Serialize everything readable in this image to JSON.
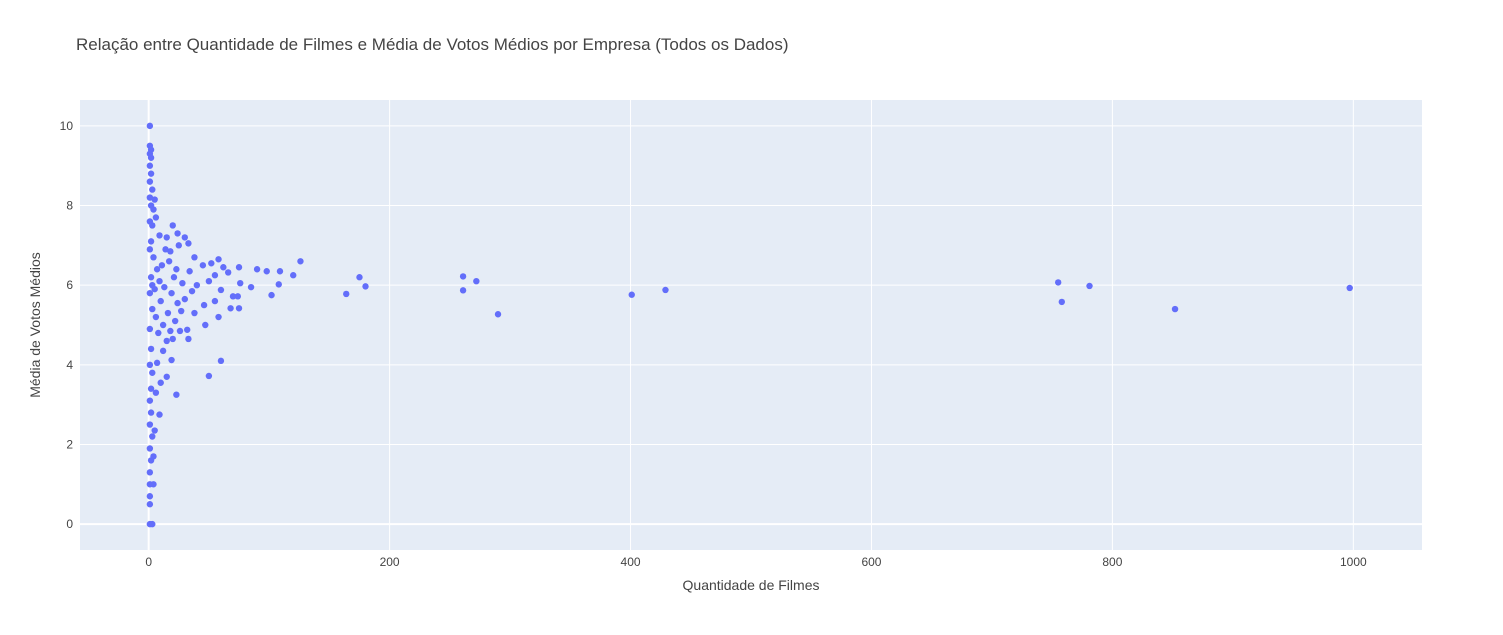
{
  "chart_data": {
    "type": "scatter",
    "title": "Relação entre Quantidade de Filmes e Média de Votos Médios por Empresa (Todos os Dados)",
    "xlabel": "Quantidade de Filmes",
    "ylabel": "Média de Votos Médios",
    "xlim": [
      -57,
      1057
    ],
    "ylim": [
      -0.65,
      10.65
    ],
    "x_ticks": [
      0,
      200,
      400,
      600,
      800,
      1000
    ],
    "y_ticks": [
      0,
      2,
      4,
      6,
      8,
      10
    ],
    "grid": true,
    "legend": "none",
    "colors": {
      "marker": "#636efa",
      "plot_bg": "#e5ecf6",
      "grid": "#ffffff",
      "text": "#444444",
      "title": "#444444"
    },
    "points": [
      {
        "x": 1,
        "y": 10.0
      },
      {
        "x": 1,
        "y": 9.5
      },
      {
        "x": 2,
        "y": 9.4
      },
      {
        "x": 1,
        "y": 9.3
      },
      {
        "x": 2,
        "y": 9.2
      },
      {
        "x": 1,
        "y": 9.0
      },
      {
        "x": 2,
        "y": 8.8
      },
      {
        "x": 1,
        "y": 8.6
      },
      {
        "x": 3,
        "y": 8.4
      },
      {
        "x": 1,
        "y": 8.2
      },
      {
        "x": 2,
        "y": 8.0
      },
      {
        "x": 5,
        "y": 8.15
      },
      {
        "x": 4,
        "y": 7.9
      },
      {
        "x": 6,
        "y": 7.7
      },
      {
        "x": 1,
        "y": 7.6
      },
      {
        "x": 3,
        "y": 7.5
      },
      {
        "x": 9,
        "y": 7.25
      },
      {
        "x": 20,
        "y": 7.5
      },
      {
        "x": 24,
        "y": 7.3
      },
      {
        "x": 15,
        "y": 7.2
      },
      {
        "x": 30,
        "y": 7.2
      },
      {
        "x": 25,
        "y": 7.0
      },
      {
        "x": 33,
        "y": 7.05
      },
      {
        "x": 18,
        "y": 6.85
      },
      {
        "x": 38,
        "y": 6.7
      },
      {
        "x": 45,
        "y": 6.5
      },
      {
        "x": 52,
        "y": 6.55
      },
      {
        "x": 58,
        "y": 6.65
      },
      {
        "x": 62,
        "y": 6.45
      },
      {
        "x": 75,
        "y": 6.45
      },
      {
        "x": 90,
        "y": 6.4
      },
      {
        "x": 98,
        "y": 6.35
      },
      {
        "x": 109,
        "y": 6.35
      },
      {
        "x": 120,
        "y": 6.25
      },
      {
        "x": 126,
        "y": 6.6
      },
      {
        "x": 175,
        "y": 6.2
      },
      {
        "x": 180,
        "y": 5.97
      },
      {
        "x": 164,
        "y": 5.78
      },
      {
        "x": 261,
        "y": 6.22
      },
      {
        "x": 272,
        "y": 6.1
      },
      {
        "x": 261,
        "y": 5.87
      },
      {
        "x": 290,
        "y": 5.27
      },
      {
        "x": 401,
        "y": 5.76
      },
      {
        "x": 429,
        "y": 5.88
      },
      {
        "x": 755,
        "y": 6.07
      },
      {
        "x": 758,
        "y": 5.58
      },
      {
        "x": 781,
        "y": 5.98
      },
      {
        "x": 852,
        "y": 5.4
      },
      {
        "x": 997,
        "y": 5.93
      },
      {
        "x": 108,
        "y": 6.02
      },
      {
        "x": 102,
        "y": 5.75
      },
      {
        "x": 85,
        "y": 5.95
      },
      {
        "x": 76,
        "y": 6.05
      },
      {
        "x": 74,
        "y": 5.72
      },
      {
        "x": 75,
        "y": 5.42
      },
      {
        "x": 68,
        "y": 5.42
      },
      {
        "x": 70,
        "y": 5.72
      },
      {
        "x": 66,
        "y": 6.32
      },
      {
        "x": 60,
        "y": 5.88
      },
      {
        "x": 58,
        "y": 5.2
      },
      {
        "x": 55,
        "y": 6.25
      },
      {
        "x": 55,
        "y": 5.6
      },
      {
        "x": 50,
        "y": 6.1
      },
      {
        "x": 47,
        "y": 5.0
      },
      {
        "x": 46,
        "y": 5.5
      },
      {
        "x": 40,
        "y": 6.0
      },
      {
        "x": 38,
        "y": 5.3
      },
      {
        "x": 36,
        "y": 5.85
      },
      {
        "x": 34,
        "y": 6.35
      },
      {
        "x": 33,
        "y": 4.65
      },
      {
        "x": 32,
        "y": 4.88
      },
      {
        "x": 30,
        "y": 5.65
      },
      {
        "x": 28,
        "y": 6.05
      },
      {
        "x": 27,
        "y": 5.35
      },
      {
        "x": 26,
        "y": 4.85
      },
      {
        "x": 24,
        "y": 5.55
      },
      {
        "x": 23,
        "y": 6.4
      },
      {
        "x": 22,
        "y": 5.1
      },
      {
        "x": 21,
        "y": 6.2
      },
      {
        "x": 20,
        "y": 4.65
      },
      {
        "x": 19,
        "y": 5.8
      },
      {
        "x": 18,
        "y": 4.85
      },
      {
        "x": 17,
        "y": 6.6
      },
      {
        "x": 16,
        "y": 5.3
      },
      {
        "x": 15,
        "y": 4.6
      },
      {
        "x": 14,
        "y": 6.9
      },
      {
        "x": 13,
        "y": 5.95
      },
      {
        "x": 12,
        "y": 5.0
      },
      {
        "x": 11,
        "y": 6.5
      },
      {
        "x": 10,
        "y": 5.6
      },
      {
        "x": 9,
        "y": 6.1
      },
      {
        "x": 8,
        "y": 4.8
      },
      {
        "x": 7,
        "y": 6.4
      },
      {
        "x": 6,
        "y": 5.2
      },
      {
        "x": 5,
        "y": 5.9
      },
      {
        "x": 4,
        "y": 6.7
      },
      {
        "x": 3,
        "y": 5.4
      },
      {
        "x": 2,
        "y": 6.2
      },
      {
        "x": 1,
        "y": 5.8
      },
      {
        "x": 1,
        "y": 6.9
      },
      {
        "x": 2,
        "y": 7.1
      },
      {
        "x": 3,
        "y": 6.0
      },
      {
        "x": 1,
        "y": 4.9
      },
      {
        "x": 2,
        "y": 4.4
      },
      {
        "x": 1,
        "y": 4.0
      },
      {
        "x": 3,
        "y": 3.8
      },
      {
        "x": 2,
        "y": 3.4
      },
      {
        "x": 1,
        "y": 3.1
      },
      {
        "x": 2,
        "y": 2.8
      },
      {
        "x": 1,
        "y": 2.5
      },
      {
        "x": 3,
        "y": 2.2
      },
      {
        "x": 1,
        "y": 1.9
      },
      {
        "x": 2,
        "y": 1.6
      },
      {
        "x": 1,
        "y": 1.3
      },
      {
        "x": 1,
        "y": 1.0
      },
      {
        "x": 4,
        "y": 1.0
      },
      {
        "x": 4,
        "y": 1.7
      },
      {
        "x": 5,
        "y": 2.35
      },
      {
        "x": 9,
        "y": 2.75
      },
      {
        "x": 23,
        "y": 3.25
      },
      {
        "x": 6,
        "y": 3.3
      },
      {
        "x": 10,
        "y": 3.55
      },
      {
        "x": 15,
        "y": 3.7
      },
      {
        "x": 50,
        "y": 3.72
      },
      {
        "x": 60,
        "y": 4.1
      },
      {
        "x": 19,
        "y": 4.12
      },
      {
        "x": 12,
        "y": 4.35
      },
      {
        "x": 7,
        "y": 4.05
      },
      {
        "x": 1,
        "y": 0.7
      },
      {
        "x": 1,
        "y": 0.5
      },
      {
        "x": 1,
        "y": 0.0
      },
      {
        "x": 3,
        "y": 0.0
      }
    ]
  }
}
